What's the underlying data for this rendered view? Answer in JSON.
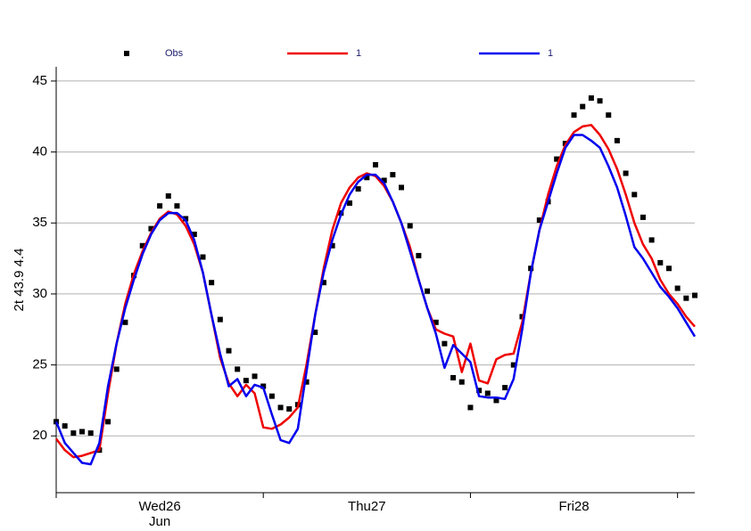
{
  "chart_data": {
    "type": "line",
    "y_label": "2t 43.9 4.4",
    "x": [
      0,
      1,
      2,
      3,
      4,
      5,
      6,
      7,
      8,
      9,
      10,
      11,
      12,
      13,
      14,
      15,
      16,
      17,
      18,
      19,
      20,
      21,
      22,
      23,
      24,
      25,
      26,
      27,
      28,
      29,
      30,
      31,
      32,
      33,
      34,
      35,
      36,
      37,
      38,
      39,
      40,
      41,
      42,
      43,
      44,
      45,
      46,
      47,
      48,
      49,
      50,
      51,
      52,
      53,
      54,
      55,
      56,
      57,
      58,
      59,
      60,
      61,
      62,
      63,
      64,
      65,
      66,
      67,
      68,
      69,
      70,
      71,
      72,
      73,
      74
    ],
    "xlim": [
      0,
      74
    ],
    "xticks": [
      {
        "value": 12,
        "label": "Wed26"
      },
      {
        "value": 36,
        "label": "Thu27"
      },
      {
        "value": 60,
        "label": "Fri28"
      }
    ],
    "x_month": "Jun",
    "x_day_ticks": [
      0,
      24,
      48,
      72
    ],
    "ylim": [
      16,
      46
    ],
    "yticks": [
      20,
      25,
      30,
      35,
      40,
      45
    ],
    "grid": true,
    "series": [
      {
        "name": "Obs",
        "color": "#000000",
        "style": "markers",
        "values": [
          21.0,
          20.7,
          20.2,
          20.3,
          20.2,
          19.0,
          21.0,
          24.7,
          28.0,
          31.3,
          33.4,
          34.6,
          36.2,
          36.9,
          36.2,
          35.3,
          34.2,
          32.6,
          30.8,
          28.2,
          26.0,
          24.7,
          23.9,
          24.2,
          23.5,
          22.8,
          22.0,
          21.9,
          22.2,
          23.8,
          27.3,
          30.8,
          33.4,
          35.7,
          36.4,
          37.4,
          38.2,
          39.1,
          38.0,
          38.4,
          37.5,
          34.8,
          32.7,
          30.2,
          28.0,
          26.5,
          24.1,
          23.8,
          22.0,
          23.2,
          23.0,
          22.5,
          23.4,
          25.0,
          28.4,
          31.8,
          35.2,
          36.5,
          39.5,
          40.6,
          42.6,
          43.2,
          43.8,
          43.6,
          42.6,
          40.8,
          38.5,
          37.0,
          35.4,
          33.8,
          32.2,
          31.8,
          30.4,
          29.7,
          29.9
        ]
      },
      {
        "name": "1",
        "color": "#ee0000",
        "style": "line",
        "values": [
          19.8,
          19.0,
          18.5,
          18.6,
          18.8,
          19.0,
          23.0,
          26.5,
          29.3,
          31.4,
          33.0,
          34.3,
          35.3,
          35.8,
          35.6,
          34.8,
          33.5,
          31.5,
          28.5,
          25.5,
          23.7,
          22.8,
          23.6,
          23.0,
          20.6,
          20.5,
          20.8,
          21.3,
          22.0,
          25.0,
          28.5,
          31.8,
          34.5,
          36.4,
          37.5,
          38.2,
          38.5,
          38.3,
          37.6,
          36.5,
          35.0,
          33.3,
          31.0,
          29.0,
          27.5,
          27.2,
          27.0,
          24.5,
          26.5,
          23.9,
          23.7,
          25.4,
          25.7,
          25.8,
          28.0,
          31.5,
          34.5,
          37.0,
          39.0,
          40.5,
          41.4,
          41.8,
          41.9,
          41.2,
          40.2,
          38.8,
          37.0,
          35.0,
          33.5,
          32.5,
          31.0,
          30.0,
          29.3,
          28.4,
          27.7
        ]
      },
      {
        "name": "1",
        "color": "#0000ee",
        "style": "line",
        "values": [
          21.0,
          19.5,
          18.8,
          18.1,
          18.0,
          19.5,
          23.5,
          26.5,
          29.0,
          31.0,
          32.8,
          34.2,
          35.2,
          35.7,
          35.7,
          35.2,
          33.8,
          31.5,
          28.5,
          25.8,
          23.5,
          24.0,
          22.8,
          23.6,
          23.4,
          21.5,
          19.7,
          19.5,
          20.5,
          24.5,
          28.5,
          31.5,
          33.8,
          35.6,
          37.0,
          37.9,
          38.4,
          38.4,
          37.8,
          36.5,
          35.0,
          33.0,
          31.0,
          29.0,
          27.2,
          24.8,
          26.4,
          25.8,
          25.2,
          22.8,
          22.7,
          22.7,
          22.6,
          24.0,
          27.5,
          31.5,
          34.5,
          36.5,
          38.5,
          40.3,
          41.2,
          41.2,
          40.8,
          40.3,
          39.0,
          37.5,
          35.5,
          33.3,
          32.5,
          31.5,
          30.5,
          29.8,
          29.0,
          28.0,
          27.0
        ]
      }
    ]
  }
}
